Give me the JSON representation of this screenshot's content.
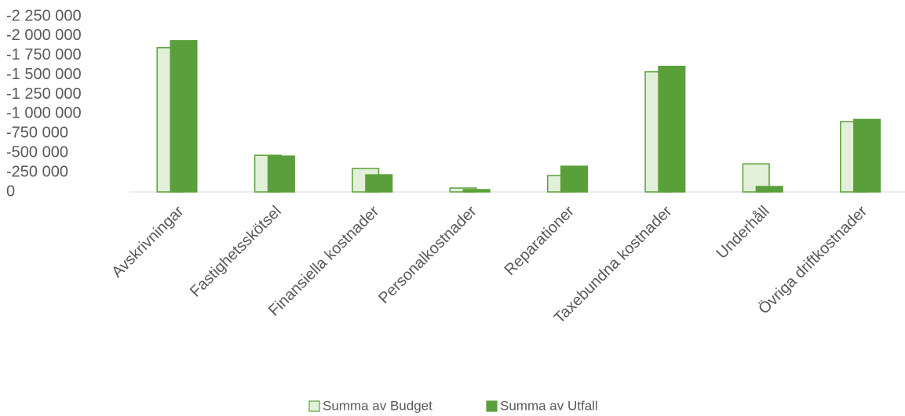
{
  "chart_data": {
    "type": "bar",
    "categories": [
      "Avskrivningar",
      "Fastighetsskötsel",
      "Finansiella kostnader",
      "Personalkostnader",
      "Reparationer",
      "Taxebundna kostnader",
      "Underhåll",
      "Övriga driftkostnader"
    ],
    "series": [
      {
        "name": "Summa av Budget",
        "color": "#e2f0d9",
        "stroke": "#5aa03a",
        "values": [
          -1850000,
          -470000,
          -300000,
          -50000,
          -210000,
          -1540000,
          -360000,
          -900000
        ]
      },
      {
        "name": "Summa av Utfall",
        "color": "#5aa03a",
        "values": [
          -1940000,
          -460000,
          -220000,
          -30000,
          -330000,
          -1610000,
          -70000,
          -930000
        ]
      }
    ],
    "ylim": [
      0,
      -2250000
    ],
    "yticks": [
      0,
      {
        "value": -250000,
        "label": "-250 000"
      },
      {
        "value": -500000,
        "label": "-500 000"
      },
      {
        "value": -750000,
        "label": "-750 000"
      },
      {
        "value": -1000000,
        "label": "-1 000 000"
      },
      {
        "value": -1250000,
        "label": "-1 250 000"
      },
      {
        "value": -1500000,
        "label": "-1 500 000"
      },
      {
        "value": -1750000,
        "label": "-1 750 000"
      },
      {
        "value": -2000000,
        "label": "-2 000 000"
      },
      {
        "value": -2250000,
        "label": "-2 250 000"
      }
    ],
    "grid": false,
    "legend": "bottom"
  }
}
